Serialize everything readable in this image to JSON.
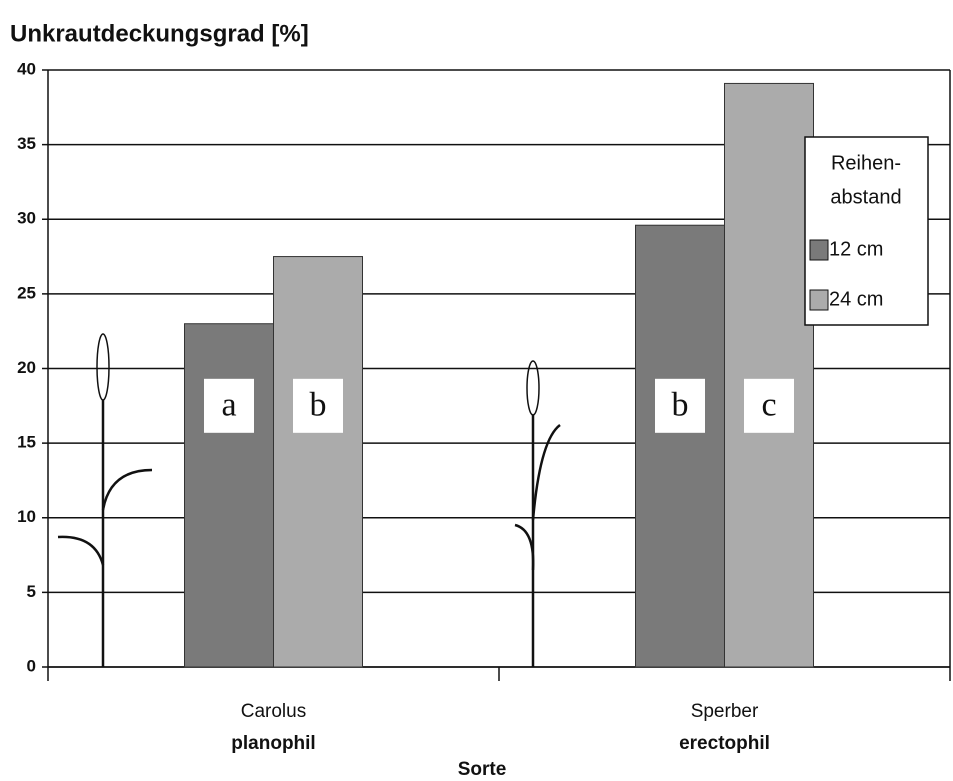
{
  "chart_data": {
    "type": "bar",
    "title": "Unkrautdeckungsgrad [%]",
    "x_label": "Sorte",
    "categories": [
      "Carolus",
      "Sperber"
    ],
    "category_sublabels": [
      "planophil",
      "erectophil"
    ],
    "series": [
      {
        "name": "12 cm",
        "color": "#7a7a7a",
        "values": [
          23,
          29.6
        ],
        "significance": [
          "a",
          "b"
        ]
      },
      {
        "name": "24 cm",
        "color": "#ababab",
        "values": [
          27.5,
          39.1
        ],
        "significance": [
          "b",
          "c"
        ]
      }
    ],
    "legend_title_lines": [
      "Reihen-",
      "abstand"
    ],
    "legend": "upper right",
    "ylim": [
      0,
      40
    ],
    "yticks": [
      0,
      5,
      10,
      15,
      20,
      25,
      30,
      35,
      40
    ],
    "grid": true
  }
}
